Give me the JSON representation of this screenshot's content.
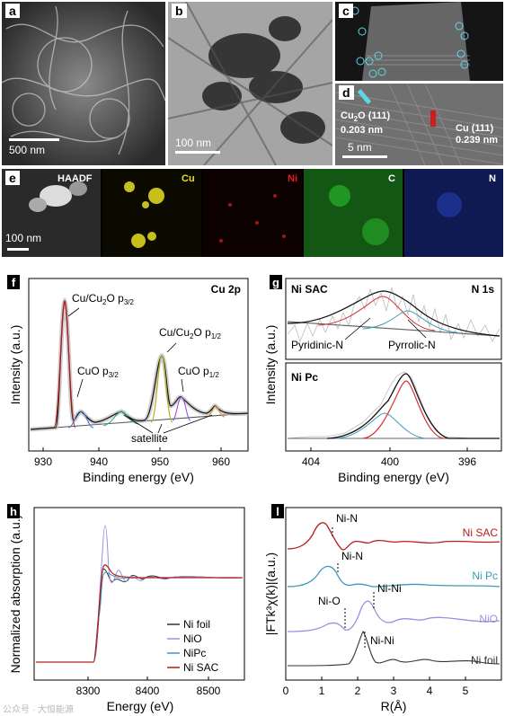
{
  "panels": {
    "a": {
      "tag": "a",
      "scalebar": "500 nm"
    },
    "b": {
      "tag": "b",
      "scalebar": "100 nm"
    },
    "c": {
      "tag": "c"
    },
    "d": {
      "tag": "d",
      "label1_main": "Cu",
      "label1_sub": "2",
      "label1_rest": "O (111)",
      "label1_value": "0.203 nm",
      "label2_main": "Cu (111)",
      "label2_value": "0.239 nm",
      "scalebar": "5 nm"
    },
    "e": {
      "tag": "e",
      "maps": [
        "HAADF",
        "Cu",
        "Ni",
        "C",
        "N"
      ],
      "map_colors": [
        "#ffffff",
        "#e8e020",
        "#e02020",
        "#20c020",
        "#3050e0"
      ],
      "scalebar": "100 nm"
    }
  },
  "chart_data": [
    {
      "panel": "f",
      "type": "line",
      "title": "Cu 2p",
      "xlabel": "Binding energy (eV)",
      "ylabel": "Intensity (a.u.)",
      "x_ticks": [
        930,
        940,
        950,
        960
      ],
      "xlim": [
        968,
        927
      ],
      "annotations": {
        "cu_p32_main": "Cu/Cu",
        "cu_p32_sub": "2",
        "cu_p32_rest": "O  p",
        "cu_p32_subscript": "3/2",
        "cu_p12_main": "Cu/Cu",
        "cu_p12_sub": "2",
        "cu_p12_rest": "O  p",
        "cu_p12_subscript": "1/2",
        "cuo_p32": "CuO p",
        "cuo_p32_sub": "3/2",
        "cuo_p12": "CuO p",
        "cuo_p12_sub": "1/2",
        "satellite": "satellite"
      },
      "peaks": [
        {
          "name": "Cu/Cu2O p3/2",
          "center": 932.3,
          "height": 1.0
        },
        {
          "name": "CuO p3/2",
          "center": 934.2,
          "height": 0.2
        },
        {
          "name": "satellite",
          "center": 943.6,
          "height": 0.1
        },
        {
          "name": "Cu/Cu2O p1/2",
          "center": 952.1,
          "height": 0.55
        },
        {
          "name": "CuO p1/2",
          "center": 954.5,
          "height": 0.1
        },
        {
          "name": "satellite",
          "center": 962.5,
          "height": 0.07
        }
      ]
    },
    {
      "panel": "g",
      "type": "line",
      "title": "N 1s",
      "xlabel": "Binding energy (eV)",
      "ylabel": "Intensity (a.u.)",
      "x_ticks": [
        404,
        400,
        396
      ],
      "xlim": [
        406,
        393.5
      ],
      "subpanels": [
        {
          "label": "Ni SAC",
          "components": [
            {
              "name": "Pyridinic-N",
              "center": 399.9
            },
            {
              "name": "Pyrrolic-N",
              "center": 398.8
            }
          ]
        },
        {
          "label": "Ni Pc",
          "components": [
            {
              "name": "Pyridinic-N",
              "center": 400.1
            },
            {
              "name": "Pyrrolic-N",
              "center": 398.7
            }
          ]
        }
      ],
      "annotations": {
        "pyridinic": "Pyridinic-N",
        "pyrrolic": "Pyrrolic-N"
      }
    },
    {
      "panel": "h",
      "type": "line",
      "xlabel": "Energy (eV)",
      "ylabel": "Normalized absorption (a.u.)",
      "x_ticks": [
        8300,
        8400,
        8500
      ],
      "xlim": [
        8250,
        8600
      ],
      "series": [
        {
          "name": "Ni foil",
          "color": "#333333"
        },
        {
          "name": "NiO",
          "color": "#9a8fe0"
        },
        {
          "name": "NiPc",
          "color": "#3a9ab8"
        },
        {
          "name": "Ni SAC",
          "color": "#b81c1c"
        }
      ]
    },
    {
      "panel": "l",
      "type": "line",
      "xlabel": "R(Å)",
      "ylabel": "|FTk³χ(k)|(a.u.)",
      "x_ticks": [
        0,
        1,
        2,
        3,
        4,
        5
      ],
      "xlim": [
        0,
        6
      ],
      "series": [
        {
          "name": "Ni SAC",
          "color": "#b81c1c",
          "peak": "Ni-N",
          "peak_r": 1.3
        },
        {
          "name": "Ni Pc",
          "color": "#3a9ab8",
          "peak": "Ni-N",
          "peak_r": 1.45
        },
        {
          "name": "NiO",
          "color": "#9a8fe0",
          "peaks": [
            "Ni-O",
            "Ni-Ni"
          ],
          "peak_r": [
            1.65,
            2.6
          ]
        },
        {
          "name": "Ni foil",
          "color": "#333333",
          "peak": "Ni-Ni",
          "peak_r": 2.15
        }
      ]
    }
  ],
  "watermark": "公众号 · 大恒能源"
}
